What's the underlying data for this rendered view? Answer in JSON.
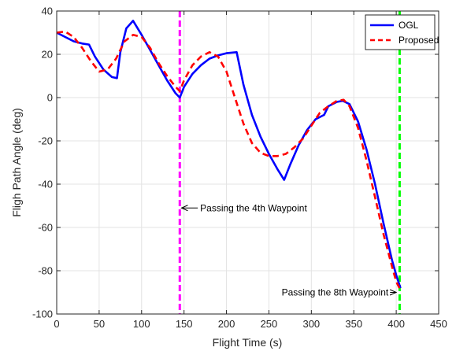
{
  "chart_data": {
    "type": "line",
    "title": "",
    "xlabel": "Flight Time (s)",
    "ylabel": "Fligh Path Angle (deg)",
    "xlim": [
      0,
      450
    ],
    "ylim": [
      -100,
      40
    ],
    "xticks": [
      0,
      50,
      100,
      150,
      200,
      250,
      300,
      350,
      400,
      450
    ],
    "yticks": [
      -100,
      -80,
      -60,
      -40,
      -20,
      0,
      20,
      40
    ],
    "grid": true,
    "legend_position": "top-right",
    "series": [
      {
        "name": "OGL",
        "color": "#0000ff",
        "style": "solid",
        "x": [
          0,
          10,
          20,
          30,
          38,
          45,
          55,
          65,
          71,
          75,
          82,
          90,
          100,
          110,
          120,
          130,
          140,
          145,
          150,
          160,
          170,
          180,
          190,
          200,
          212,
          220,
          230,
          240,
          250,
          260,
          268,
          275,
          285,
          295,
          305,
          315,
          320,
          330,
          337,
          345,
          355,
          365,
          375,
          385,
          395,
          400,
          405
        ],
        "y": [
          30,
          28,
          26,
          25,
          24.5,
          19,
          13,
          9.5,
          9,
          21,
          32,
          35.5,
          29,
          22,
          15,
          8,
          2,
          0,
          5,
          11,
          15,
          18,
          19.5,
          20.5,
          21,
          6,
          -8,
          -18,
          -26,
          -33,
          -38,
          -31,
          -22,
          -15,
          -10,
          -8,
          -4,
          -2,
          -1.5,
          -3,
          -11,
          -24,
          -40,
          -58,
          -75,
          -82,
          -88
        ]
      },
      {
        "name": "Proposed",
        "color": "#ff0000",
        "style": "dashed",
        "x": [
          0,
          10,
          20,
          30,
          40,
          50,
          60,
          70,
          80,
          90,
          100,
          110,
          120,
          130,
          140,
          145,
          150,
          160,
          170,
          180,
          190,
          200,
          210,
          220,
          230,
          240,
          250,
          260,
          270,
          280,
          290,
          300,
          310,
          320,
          330,
          338,
          345,
          355,
          365,
          375,
          385,
          395,
          400,
          405
        ],
        "y": [
          30,
          30.5,
          28,
          23,
          17,
          12,
          13,
          18,
          26,
          29,
          28,
          23,
          16,
          10,
          5,
          3,
          8,
          15,
          19,
          21,
          19,
          12,
          0,
          -12,
          -21,
          -25.5,
          -27,
          -27,
          -26,
          -23,
          -19,
          -13,
          -7,
          -4,
          -1.5,
          -1,
          -4,
          -14,
          -29,
          -46,
          -63,
          -78,
          -85,
          -89
        ]
      }
    ],
    "vlines": [
      {
        "x": 145,
        "color": "#ff00ff"
      },
      {
        "x": 404,
        "color": "#00ff00"
      }
    ],
    "annotations": [
      {
        "text": "Passing the 4th Waypoint",
        "x": 169,
        "y": -51,
        "arrow_to_x": 147,
        "arrow_to_y": -51
      },
      {
        "text": "Passing the 8th Waypoint",
        "x": 265,
        "y": -90,
        "arrow_to_x": 400,
        "arrow_to_y": -90
      }
    ]
  }
}
